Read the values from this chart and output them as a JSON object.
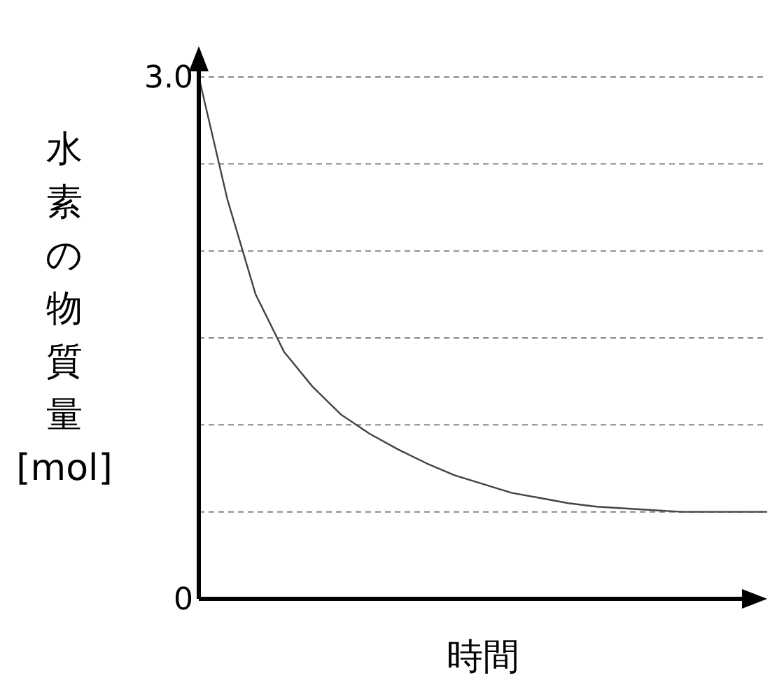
{
  "chart_data": {
    "type": "line",
    "xlabel": "時間",
    "ylabel": "水素の物質量[mol]",
    "categories": [
      null,
      null,
      null,
      null,
      null,
      null,
      null,
      null,
      null,
      null,
      null,
      null,
      null,
      null,
      null,
      null,
      null,
      null,
      null,
      null,
      null
    ],
    "series": [
      {
        "color": "#444444",
        "values": [
          3.0,
          2.3,
          1.75,
          1.42,
          1.22,
          1.06,
          0.95,
          0.86,
          0.78,
          0.71,
          0.66,
          0.61,
          0.58,
          0.55,
          0.53,
          0.52,
          0.51,
          0.5,
          0.5,
          0.5,
          0.5
        ]
      }
    ],
    "ylim": [
      0,
      3.0
    ],
    "yticks": [
      0,
      {
        "value": 0.5,
        "label": null
      },
      {
        "value": 1.0,
        "label": null
      },
      {
        "value": 1.5,
        "label": null
      },
      {
        "value": 2.0,
        "label": null
      },
      {
        "value": 2.5,
        "label": null
      },
      {
        "value": 3.0,
        "label": "3.0"
      }
    ],
    "grid": "y",
    "marker": "none",
    "line_style": "solid"
  }
}
